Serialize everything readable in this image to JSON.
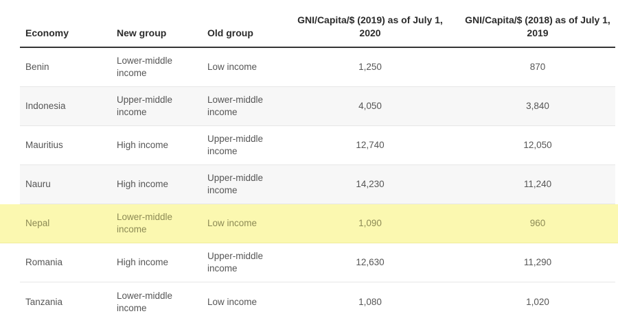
{
  "table": {
    "headers": {
      "economy": "Economy",
      "new_group": "New group",
      "old_group": "Old group",
      "gni_2019": "GNI/Capita/$ (2019) as of July 1, 2020",
      "gni_2018": "GNI/Capita/$ (2018) as of July 1, 2019"
    },
    "rows": [
      {
        "economy": "Benin",
        "new_group": "Lower-middle income",
        "old_group": "Low income",
        "gni_2019": "1,250",
        "gni_2018": "870"
      },
      {
        "economy": "Indonesia",
        "new_group": "Upper-middle income",
        "old_group": "Lower-middle income",
        "gni_2019": "4,050",
        "gni_2018": "3,840"
      },
      {
        "economy": "Mauritius",
        "new_group": "High income",
        "old_group": "Upper-middle income",
        "gni_2019": "12,740",
        "gni_2018": "12,050"
      },
      {
        "economy": "Nauru",
        "new_group": "High income",
        "old_group": "Upper-middle income",
        "gni_2019": "14,230",
        "gni_2018": "11,240"
      },
      {
        "economy": "Nepal",
        "new_group": "Lower-middle income",
        "old_group": "Low income",
        "gni_2019": "1,090",
        "gni_2018": "960"
      },
      {
        "economy": "Romania",
        "new_group": "High income",
        "old_group": "Upper-middle income",
        "gni_2019": "12,630",
        "gni_2018": "11,290"
      },
      {
        "economy": "Tanzania",
        "new_group": "Lower-middle income",
        "old_group": "Low income",
        "gni_2019": "1,080",
        "gni_2018": "1,020"
      }
    ],
    "highlighted_row": "Nepal",
    "colors": {
      "highlight": "#fbf8b0",
      "alt_row": "#f7f7f7",
      "header_rule": "#333333"
    }
  }
}
